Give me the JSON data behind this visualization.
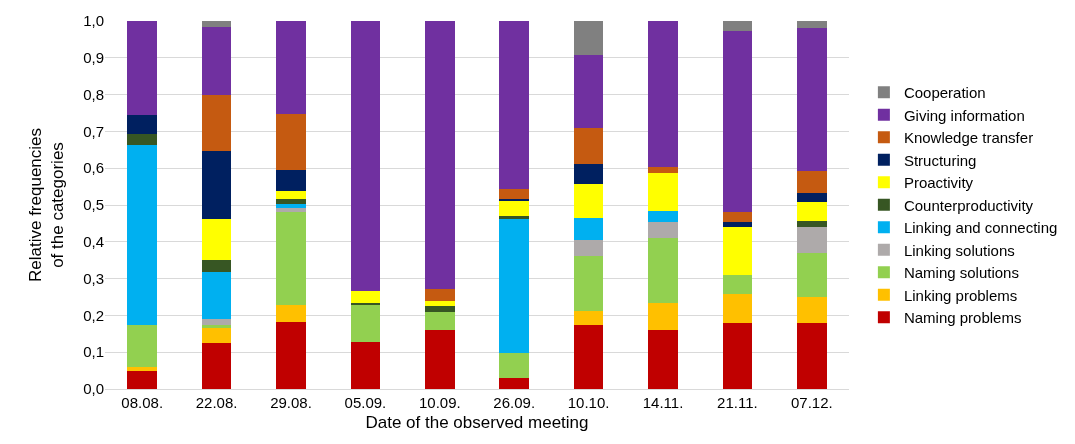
{
  "chart_data": {
    "type": "bar",
    "stacked": true,
    "xlabel": "Date of the observed meeting",
    "ylabel": "Relative frequencies\nof the categories",
    "categories": [
      "08.08.",
      "22.08.",
      "29.08.",
      "05.09.",
      "10.09.",
      "26.09.",
      "10.10.",
      "14.11.",
      "21.11.",
      "07.12."
    ],
    "series": [
      {
        "name": "Naming problems",
        "color": "#c00000",
        "values": [
          0.05,
          0.125,
          0.182,
          0.128,
          0.159,
          0.031,
          0.175,
          0.16,
          0.18,
          0.179
        ]
      },
      {
        "name": "Linking problems",
        "color": "#ffc000",
        "values": [
          0.01,
          0.042,
          0.047,
          0,
          0,
          0,
          0.036,
          0.075,
          0.078,
          0.07
        ]
      },
      {
        "name": "Naming solutions",
        "color": "#92d050",
        "values": [
          0.113,
          0.008,
          0.253,
          0.1,
          0.051,
          0.066,
          0.151,
          0.176,
          0.053,
          0.121
        ]
      },
      {
        "name": "Linking solutions",
        "color": "#aeaaaa",
        "values": [
          0,
          0.016,
          0.011,
          0,
          0,
          0,
          0.043,
          0.044,
          0,
          0.069
        ]
      },
      {
        "name": "Linking and connecting",
        "color": "#00b0f0",
        "values": [
          0.49,
          0.128,
          0.011,
          0,
          0,
          0.366,
          0.06,
          0.029,
          0,
          0
        ]
      },
      {
        "name": "Counterproductivity",
        "color": "#375623",
        "values": [
          0.03,
          0.032,
          0.012,
          0.007,
          0.015,
          0.008,
          0,
          0,
          0,
          0.017
        ]
      },
      {
        "name": "Proactivity",
        "color": "#ffff00",
        "values": [
          0,
          0.112,
          0.023,
          0.032,
          0.015,
          0.039,
          0.093,
          0.103,
          0.13,
          0.051
        ]
      },
      {
        "name": "Structuring",
        "color": "#002060",
        "values": [
          0.051,
          0.183,
          0.057,
          0,
          0,
          0.007,
          0.053,
          0,
          0.013,
          0.025
        ]
      },
      {
        "name": "Knowledge transfer",
        "color": "#c55a11",
        "values": [
          0,
          0.154,
          0.15,
          0,
          0.032,
          0.027,
          0.097,
          0.015,
          0.026,
          0.061
        ]
      },
      {
        "name": "Giving information",
        "color": "#7030a0",
        "values": [
          0.256,
          0.184,
          0.254,
          0.733,
          0.728,
          0.456,
          0.199,
          0.398,
          0.494,
          0.388
        ]
      },
      {
        "name": "Cooperation",
        "color": "#808080",
        "values": [
          0,
          0.016,
          0,
          0,
          0,
          0,
          0.093,
          0,
          0.026,
          0.019
        ]
      }
    ],
    "ylim": [
      0,
      1
    ],
    "yticks": [
      {
        "value": 0,
        "label": "0,0"
      },
      {
        "value": 0.1,
        "label": "0,1"
      },
      {
        "value": 0.2,
        "label": "0,2"
      },
      {
        "value": 0.3,
        "label": "0,3"
      },
      {
        "value": 0.4,
        "label": "0,4"
      },
      {
        "value": 0.5,
        "label": "0,5"
      },
      {
        "value": 0.6,
        "label": "0,6"
      },
      {
        "value": 0.7,
        "label": "0,7"
      },
      {
        "value": 0.8,
        "label": "0,8"
      },
      {
        "value": 0.9,
        "label": "0,9"
      },
      {
        "value": 1,
        "label": "1,0"
      }
    ],
    "grid": "y",
    "legend": "right"
  }
}
